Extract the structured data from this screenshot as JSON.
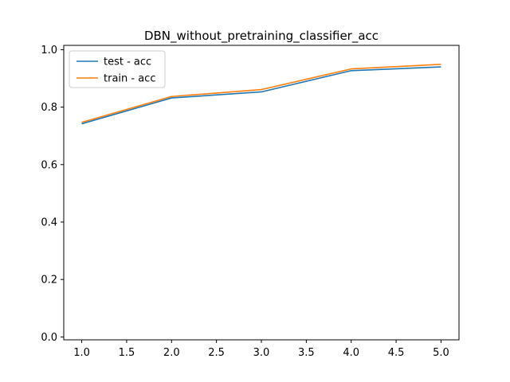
{
  "chart_data": {
    "type": "line",
    "title": "DBN_without_pretraining_classifier_acc",
    "xlabel": "",
    "ylabel": "",
    "x": [
      1.0,
      2.0,
      3.0,
      4.0,
      5.0
    ],
    "xlim": [
      0.8,
      5.2
    ],
    "ylim": [
      -0.01,
      1.015
    ],
    "xticks": [
      "1.0",
      "1.5",
      "2.0",
      "2.5",
      "3.0",
      "3.5",
      "4.0",
      "4.5",
      "5.0"
    ],
    "yticks": [
      "0.0",
      "0.2",
      "0.4",
      "0.6",
      "0.8",
      "1.0"
    ],
    "grid": false,
    "legend_position": "top-left",
    "series": [
      {
        "name": "test - acc",
        "color": "#1f77b4",
        "values": [
          0.742,
          0.832,
          0.853,
          0.927,
          0.94
        ]
      },
      {
        "name": "train - acc",
        "color": "#ff7f0e",
        "values": [
          0.747,
          0.837,
          0.861,
          0.933,
          0.949
        ]
      }
    ]
  }
}
